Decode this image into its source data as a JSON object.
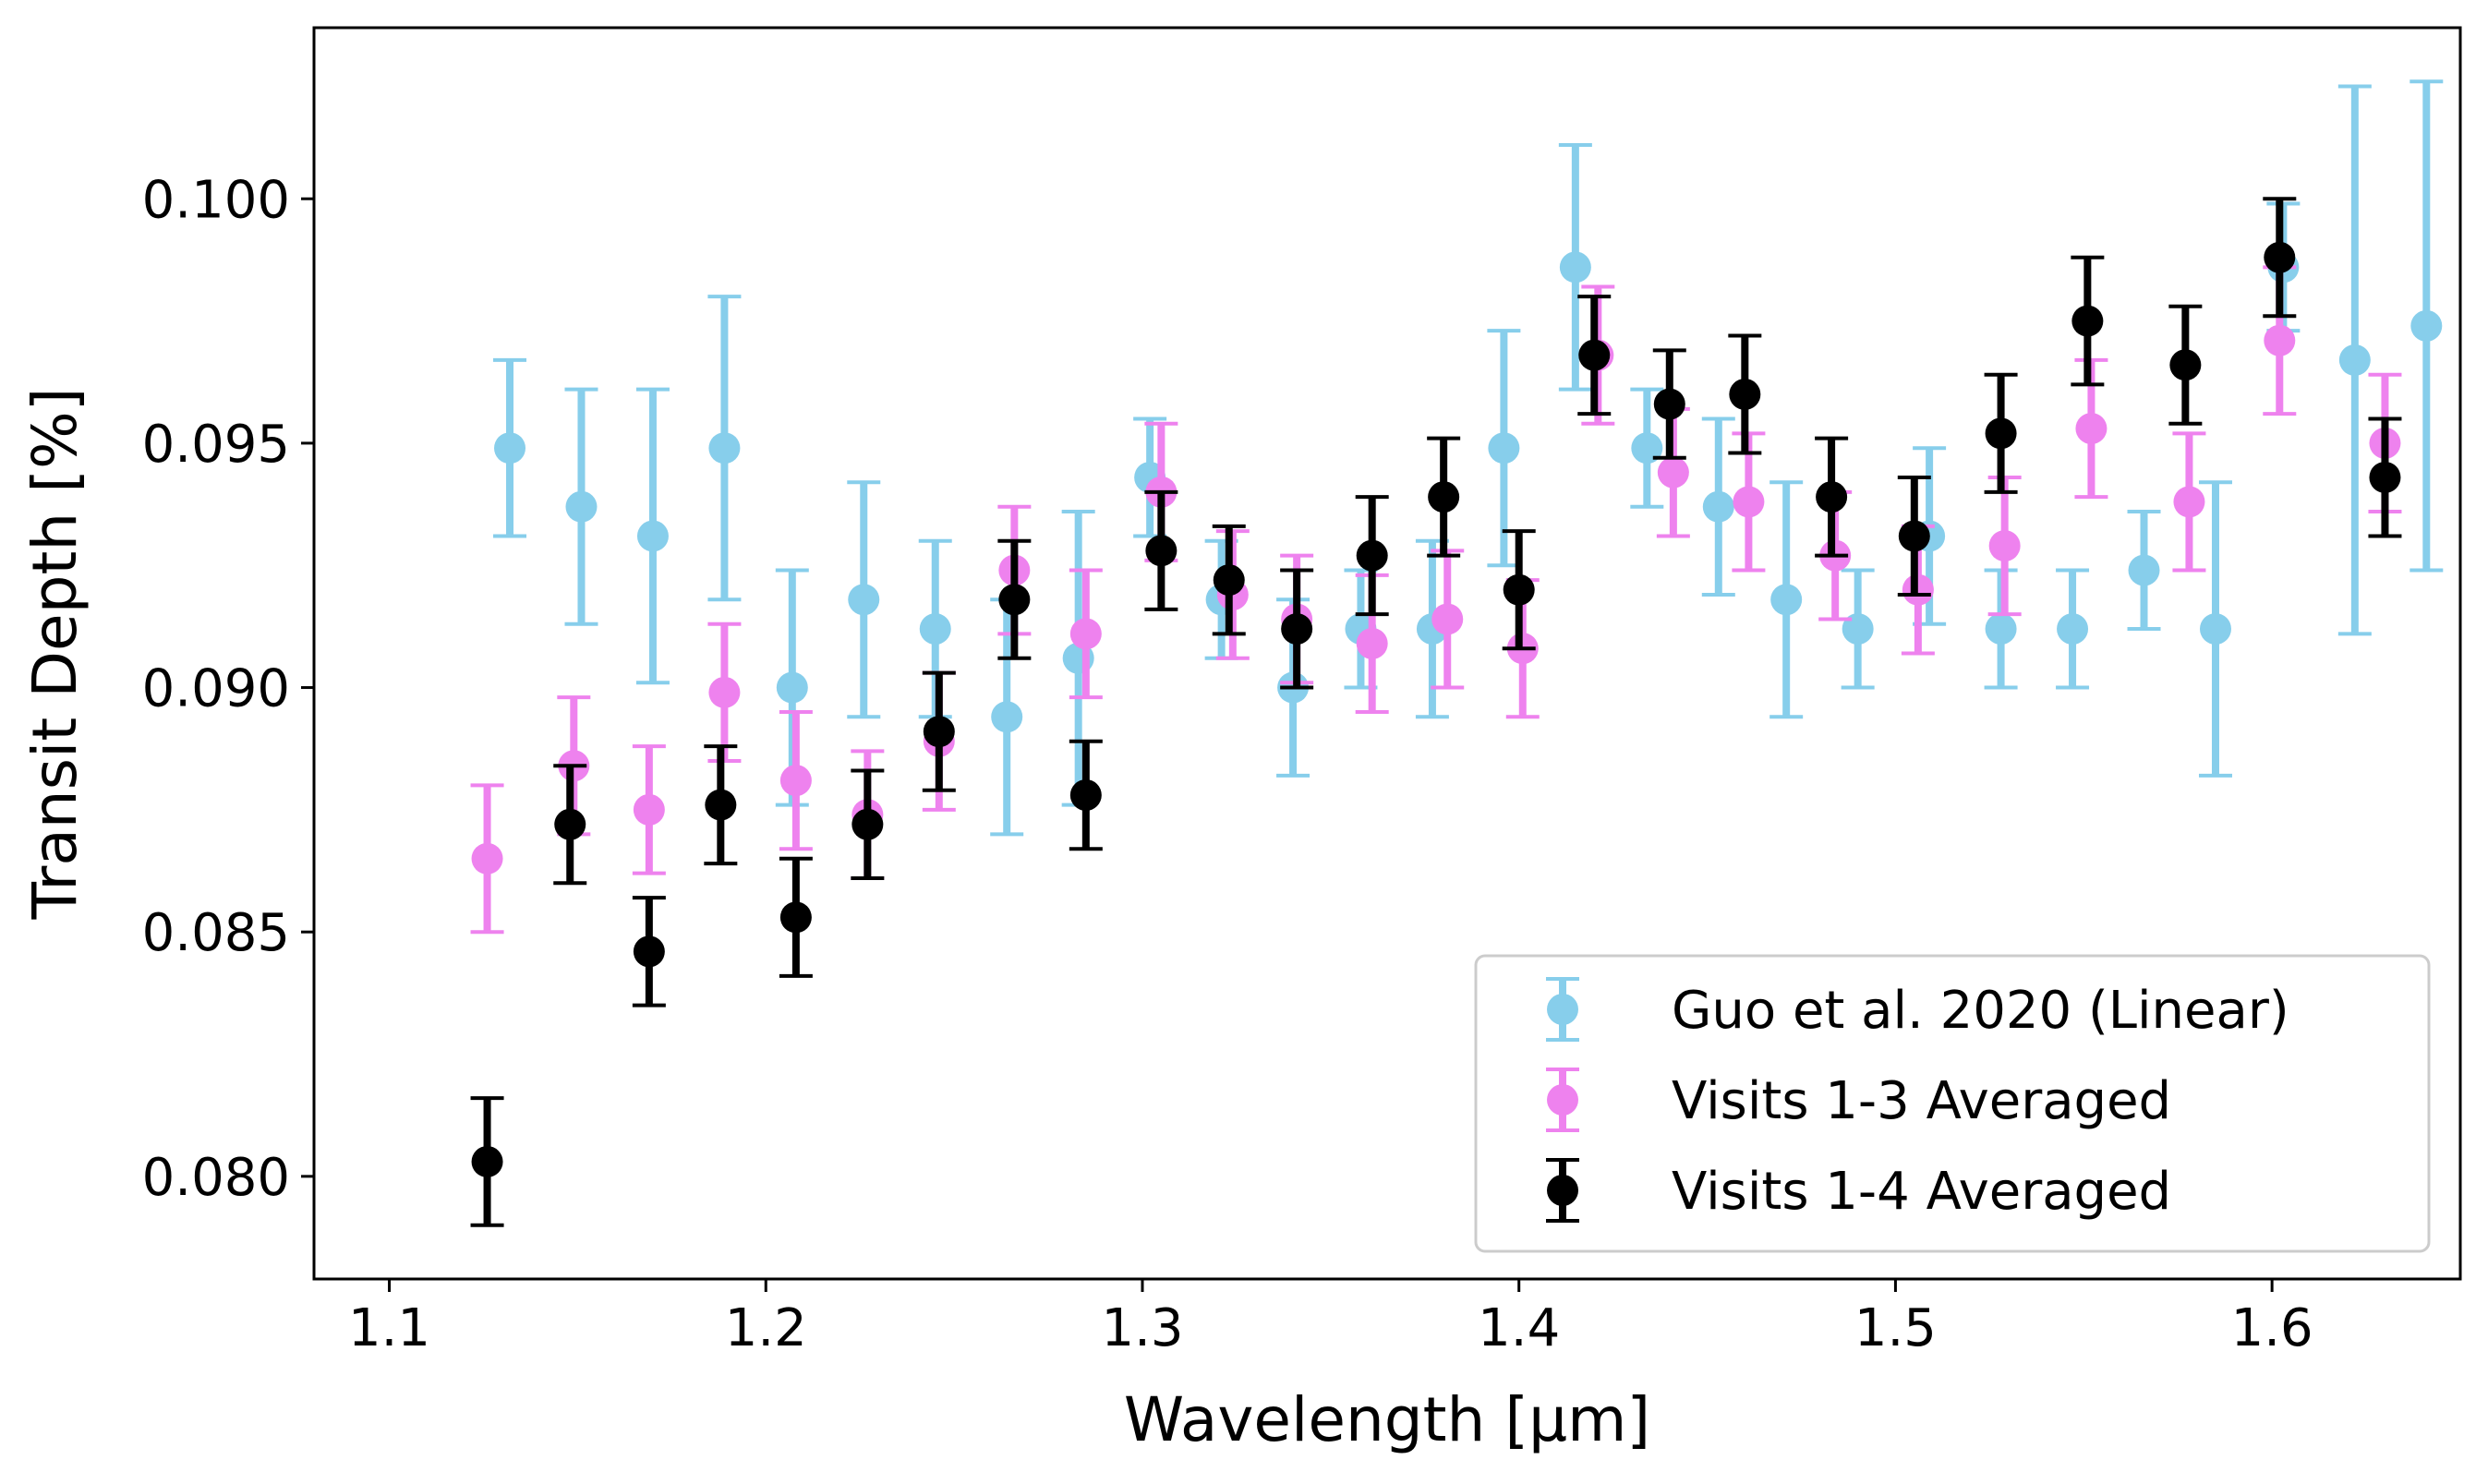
{
  "chart_data": {
    "type": "scatter",
    "title": "",
    "xlabel": "Wavelength [μm]",
    "ylabel": "Transit Depth [%]",
    "xlim": [
      1.08,
      1.65
    ],
    "ylim": [
      0.0779,
      0.1035
    ],
    "xticks": [
      1.1,
      1.2,
      1.3,
      1.4,
      1.5,
      1.6
    ],
    "xtick_labels": [
      "1.1",
      "1.2",
      "1.3",
      "1.4",
      "1.5",
      "1.6"
    ],
    "yticks": [
      0.08,
      0.085,
      0.09,
      0.095,
      0.1
    ],
    "ytick_labels": [
      "0.080",
      "0.085",
      "0.090",
      "0.095",
      "0.100"
    ],
    "grid": false,
    "legend_position": "lower-right",
    "series": [
      {
        "name": "Guo et al. 2020 (Linear)",
        "color": "#87ceeb",
        "x": [
          1.132,
          1.151,
          1.17,
          1.189,
          1.207,
          1.226,
          1.245,
          1.264,
          1.283,
          1.302,
          1.321,
          1.34,
          1.358,
          1.377,
          1.396,
          1.415,
          1.434,
          1.453,
          1.471,
          1.49,
          1.509,
          1.528,
          1.547,
          1.566,
          1.585,
          1.603,
          1.622,
          1.641
        ],
        "y": [
          0.0949,
          0.0937,
          0.0931,
          0.0949,
          0.09,
          0.0918,
          0.0912,
          0.0894,
          0.0906,
          0.0943,
          0.0918,
          0.09,
          0.0912,
          0.0912,
          0.0949,
          0.0986,
          0.0949,
          0.0937,
          0.0918,
          0.0912,
          0.0931,
          0.0912,
          0.0912,
          0.0924,
          0.0912,
          0.0986,
          0.0967,
          0.0974
        ],
        "yerr": [
          0.0018,
          0.0024,
          0.003,
          0.0031,
          0.0024,
          0.0024,
          0.0018,
          0.0024,
          0.003,
          0.0012,
          0.0012,
          0.0018,
          0.0012,
          0.0018,
          0.0024,
          0.0025,
          0.0012,
          0.0018,
          0.0024,
          0.0012,
          0.0018,
          0.0012,
          0.0012,
          0.0012,
          0.003,
          0.0013,
          0.0056,
          0.005
        ]
      },
      {
        "name": "Visits 1-3 Averaged",
        "color": "#ee82ee",
        "x": [
          1.126,
          1.149,
          1.169,
          1.189,
          1.208,
          1.227,
          1.246,
          1.266,
          1.285,
          1.305,
          1.324,
          1.341,
          1.361,
          1.381,
          1.401,
          1.421,
          1.441,
          1.461,
          1.484,
          1.506,
          1.529,
          1.552,
          1.578,
          1.602,
          1.63
        ],
        "y": [
          0.0865,
          0.0884,
          0.0875,
          0.0899,
          0.0881,
          0.0874,
          0.0889,
          0.0924,
          0.0911,
          0.094,
          0.0919,
          0.0914,
          0.0909,
          0.0914,
          0.0908,
          0.0968,
          0.0944,
          0.0938,
          0.0927,
          0.092,
          0.0929,
          0.0953,
          0.0938,
          0.0971,
          0.095
        ],
        "yerr": [
          0.0015,
          0.0014,
          0.0013,
          0.0014,
          0.0014,
          0.0013,
          0.0014,
          0.0013,
          0.0013,
          0.0014,
          0.0013,
          0.0013,
          0.0014,
          0.0014,
          0.0014,
          0.0014,
          0.0013,
          0.0014,
          0.0013,
          0.0013,
          0.0014,
          0.0014,
          0.0014,
          0.0015,
          0.0014
        ]
      },
      {
        "name": "Visits 1-4 Averaged",
        "color": "#000000",
        "x": [
          1.126,
          1.148,
          1.169,
          1.188,
          1.208,
          1.227,
          1.246,
          1.266,
          1.285,
          1.305,
          1.323,
          1.341,
          1.361,
          1.38,
          1.4,
          1.42,
          1.44,
          1.46,
          1.483,
          1.505,
          1.528,
          1.551,
          1.577,
          1.602,
          1.63
        ],
        "y": [
          0.0803,
          0.0872,
          0.0846,
          0.0876,
          0.0853,
          0.0872,
          0.0891,
          0.0918,
          0.0878,
          0.0928,
          0.0922,
          0.0912,
          0.0927,
          0.0939,
          0.092,
          0.0968,
          0.0958,
          0.096,
          0.0939,
          0.0931,
          0.0952,
          0.0975,
          0.0966,
          0.0988,
          0.0943
        ],
        "yerr": [
          0.0013,
          0.0012,
          0.0011,
          0.0012,
          0.0012,
          0.0011,
          0.0012,
          0.0012,
          0.0011,
          0.0012,
          0.0011,
          0.0012,
          0.0012,
          0.0012,
          0.0012,
          0.0012,
          0.0011,
          0.0012,
          0.0012,
          0.0012,
          0.0012,
          0.0013,
          0.0012,
          0.0012,
          0.0012
        ]
      }
    ]
  }
}
